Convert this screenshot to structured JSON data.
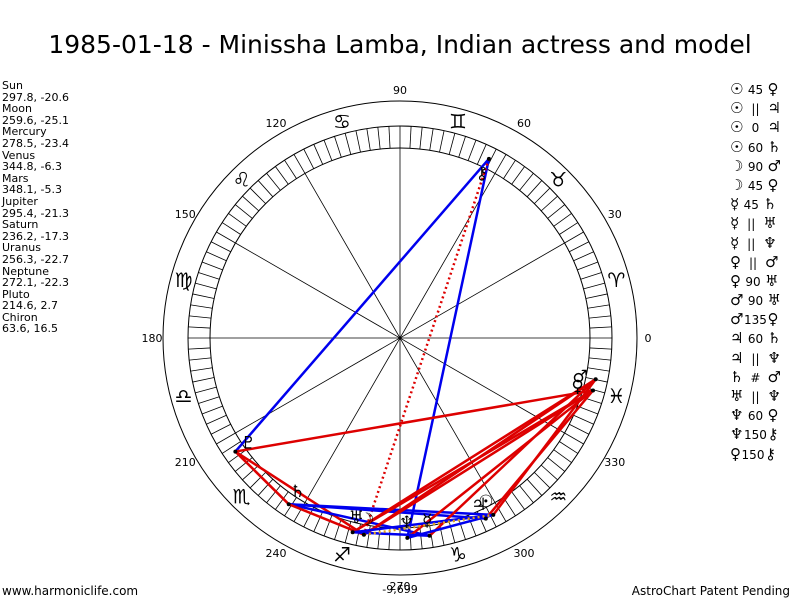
{
  "title": "1985-01-18 - Minissha Lamba, Indian actress and model",
  "footer": {
    "left": "www.harmoniclife.com",
    "right": "AstroChart Patent Pending"
  },
  "planets": [
    {
      "name": "Sun",
      "coords": "297.8, -20.6",
      "lon": 297.8,
      "glyph": "☉"
    },
    {
      "name": "Moon",
      "coords": "259.6, -25.1",
      "lon": 259.6,
      "glyph": "☽"
    },
    {
      "name": "Mercury",
      "coords": "278.5, -23.4",
      "lon": 278.5,
      "glyph": "☿"
    },
    {
      "name": "Venus",
      "coords": "344.8, -6.3",
      "lon": 344.8,
      "glyph": "♀"
    },
    {
      "name": "Mars",
      "coords": "348.1, -5.3",
      "lon": 348.1,
      "glyph": "♂"
    },
    {
      "name": "Jupiter",
      "coords": "295.4, -21.3",
      "lon": 295.4,
      "glyph": "♃"
    },
    {
      "name": "Saturn",
      "coords": "236.2, -17.3",
      "lon": 236.2,
      "glyph": "♄"
    },
    {
      "name": "Uranus",
      "coords": "256.3, -22.7",
      "lon": 256.3,
      "glyph": "♅"
    },
    {
      "name": "Neptune",
      "coords": "272.1, -22.3",
      "lon": 272.1,
      "glyph": "♆"
    },
    {
      "name": "Pluto",
      "coords": "214.6, 2.7",
      "lon": 214.6,
      "glyph": "♇"
    },
    {
      "name": "Chiron",
      "coords": "63.6, 16.5",
      "lon": 63.6,
      "glyph": "⚷"
    }
  ],
  "aspects": [
    {
      "p1": "☉",
      "aspect": "45",
      "p2": "♀"
    },
    {
      "p1": "☉",
      "aspect": "||",
      "p2": "♃"
    },
    {
      "p1": "☉",
      "aspect": "0",
      "p2": "♃"
    },
    {
      "p1": "☉",
      "aspect": "60",
      "p2": "♄"
    },
    {
      "p1": "☽",
      "aspect": "90",
      "p2": "♂"
    },
    {
      "p1": "☽",
      "aspect": "45",
      "p2": "♀"
    },
    {
      "p1": "☿",
      "aspect": "45",
      "p2": "♄"
    },
    {
      "p1": "☿",
      "aspect": "||",
      "p2": "♅"
    },
    {
      "p1": "☿",
      "aspect": "||",
      "p2": "♆"
    },
    {
      "p1": "♀",
      "aspect": "||",
      "p2": "♂"
    },
    {
      "p1": "♀",
      "aspect": "90",
      "p2": "♅"
    },
    {
      "p1": "♂",
      "aspect": "90",
      "p2": "♅"
    },
    {
      "p1": "♂",
      "aspect": "135",
      "p2": "♀"
    },
    {
      "p1": "♃",
      "aspect": "60",
      "p2": "♄"
    },
    {
      "p1": "♃",
      "aspect": "||",
      "p2": "♆"
    },
    {
      "p1": "♄",
      "aspect": "#",
      "p2": "♂"
    },
    {
      "p1": "♅",
      "aspect": "||",
      "p2": "♆"
    },
    {
      "p1": "♆",
      "aspect": "60",
      "p2": "♀"
    },
    {
      "p1": "♆",
      "aspect": "150",
      "p2": "⚷"
    },
    {
      "p1": "♀",
      "aspect": "150",
      "p2": "⚷"
    }
  ],
  "chart_data": {
    "type": "scatter",
    "title": "1985-01-18 - Minissha Lamba, Indian actress and model",
    "angle_ticks": [
      "0",
      "30",
      "60",
      "90",
      "120",
      "150",
      "180",
      "210",
      "240",
      "270",
      "300",
      "330"
    ],
    "zodiac_signs": [
      "♈",
      "♉",
      "♊",
      "♋",
      "♌",
      "♍",
      "♎",
      "♏",
      "♐",
      "♑",
      "♒",
      "♓"
    ],
    "declination_label": "-9,699",
    "aspect_lines": [
      {
        "from": "Chiron",
        "to": "Pluto",
        "color": "#0000ee",
        "style": "solid"
      },
      {
        "from": "Chiron",
        "to": "Neptune",
        "color": "#0000ee",
        "style": "solid"
      },
      {
        "from": "Chiron",
        "to": "Moon",
        "color": "#dd0000",
        "style": "dotted"
      },
      {
        "from": "Pluto",
        "to": "Venus",
        "color": "#dd0000",
        "style": "solid"
      },
      {
        "from": "Pluto",
        "to": "Saturn",
        "color": "#dd0000",
        "style": "solid"
      },
      {
        "from": "Pluto",
        "to": "Moon",
        "color": "#dd0000",
        "style": "solid"
      },
      {
        "from": "Saturn",
        "to": "Sun",
        "color": "#0000ee",
        "style": "solid"
      },
      {
        "from": "Saturn",
        "to": "Mercury",
        "color": "#0000ee",
        "style": "solid"
      },
      {
        "from": "Saturn",
        "to": "Jupiter",
        "color": "#0000ee",
        "style": "solid"
      },
      {
        "from": "Saturn",
        "to": "Moon",
        "color": "#dd0000",
        "style": "solid"
      },
      {
        "from": "Moon",
        "to": "Venus",
        "color": "#dd0000",
        "style": "solid"
      },
      {
        "from": "Moon",
        "to": "Mars",
        "color": "#dd0000",
        "style": "solid"
      },
      {
        "from": "Uranus",
        "to": "Venus",
        "color": "#dd0000",
        "style": "solid"
      },
      {
        "from": "Uranus",
        "to": "Mars",
        "color": "#dd0000",
        "style": "solid"
      },
      {
        "from": "Neptune",
        "to": "Venus",
        "color": "#dd0000",
        "style": "solid"
      },
      {
        "from": "Mercury",
        "to": "Mars",
        "color": "#dd0000",
        "style": "solid"
      },
      {
        "from": "Sun",
        "to": "Mars",
        "color": "#dd0000",
        "style": "solid"
      },
      {
        "from": "Jupiter",
        "to": "Venus",
        "color": "#dd0000",
        "style": "solid"
      },
      {
        "from": "Uranus",
        "to": "Sun",
        "color": "#0000ee",
        "style": "solid"
      },
      {
        "from": "Uranus",
        "to": "Mercury",
        "color": "#0000ee",
        "style": "solid"
      },
      {
        "from": "Neptune",
        "to": "Sun",
        "color": "#0000ee",
        "style": "solid"
      },
      {
        "from": "Moon",
        "to": "Sun",
        "color": "#e0a020",
        "style": "dotted"
      }
    ]
  },
  "colors": {
    "harmonious": "#0000ee",
    "tense": "#dd0000",
    "minor": "#e0a020"
  }
}
